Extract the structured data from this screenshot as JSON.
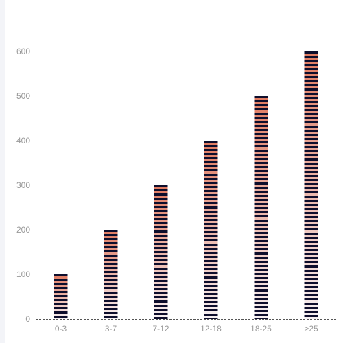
{
  "chart_data": {
    "type": "bar",
    "categories": [
      "0-3",
      "3-7",
      "7-12",
      "12-18",
      "18-25",
      ">25"
    ],
    "series": [
      {
        "values": [
          100,
          200,
          300,
          400,
          500,
          600
        ]
      }
    ],
    "yticks": [
      "0",
      "100",
      "200",
      "300",
      "400",
      "500",
      "600"
    ],
    "ylim": [
      0,
      600
    ],
    "grid": false,
    "colors": {
      "bar_top": "#e07a60",
      "bar_bottom": "#f6f0f2",
      "stripe": "#0e0e2c",
      "axis": "#555555",
      "tick_text": "#999999"
    }
  }
}
